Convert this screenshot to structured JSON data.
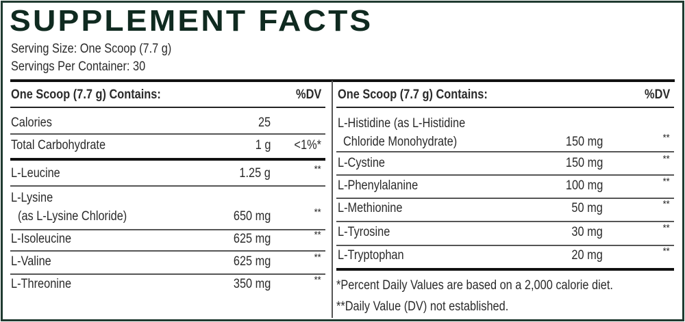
{
  "title": "SUPPLEMENT FACTS",
  "serving_size": "Serving Size: One Scoop (7.7 g)",
  "servings_per_container": "Servings Per Container: 30",
  "colors": {
    "border": "#1f3a30",
    "title": "#0f2a20"
  },
  "left": {
    "header": "One Scoop (7.7 g) Contains:",
    "dv_header": "%DV",
    "rows": [
      {
        "name": [
          "Calories"
        ],
        "amount": "25",
        "dv": ""
      },
      {
        "name": [
          "Total Carbohydrate"
        ],
        "amount": "1 g",
        "dv": "<1%*"
      },
      {
        "name": [
          "L-Leucine"
        ],
        "amount": "1.25 g",
        "dv": "**"
      },
      {
        "name": [
          "L-Lysine",
          "(as L-Lysine Chloride)"
        ],
        "amount": "650 mg",
        "dv": "**"
      },
      {
        "name": [
          "L-Isoleucine"
        ],
        "amount": "625 mg",
        "dv": "**"
      },
      {
        "name": [
          "L-Valine"
        ],
        "amount": "625 mg",
        "dv": "**"
      },
      {
        "name": [
          "L-Threonine"
        ],
        "amount": "350 mg",
        "dv": "**"
      }
    ]
  },
  "right": {
    "header": "One Scoop (7.7 g) Contains:",
    "dv_header": "%DV",
    "rows": [
      {
        "name": [
          "L-Histidine (as L-Histidine",
          "Chloride Monohydrate)"
        ],
        "amount": "150 mg",
        "dv": "**"
      },
      {
        "name": [
          "L-Cystine"
        ],
        "amount": "150 mg",
        "dv": "**"
      },
      {
        "name": [
          "L-Phenylalanine"
        ],
        "amount": "100 mg",
        "dv": "**"
      },
      {
        "name": [
          "L-Methionine"
        ],
        "amount": "50 mg",
        "dv": "**"
      },
      {
        "name": [
          "L-Tyrosine"
        ],
        "amount": "30 mg",
        "dv": "**"
      },
      {
        "name": [
          "L-Tryptophan"
        ],
        "amount": "20 mg",
        "dv": "**"
      }
    ],
    "footnotes": [
      "*Percent Daily Values are based on a 2,000 calorie diet.",
      "**Daily Value (DV) not established."
    ]
  }
}
